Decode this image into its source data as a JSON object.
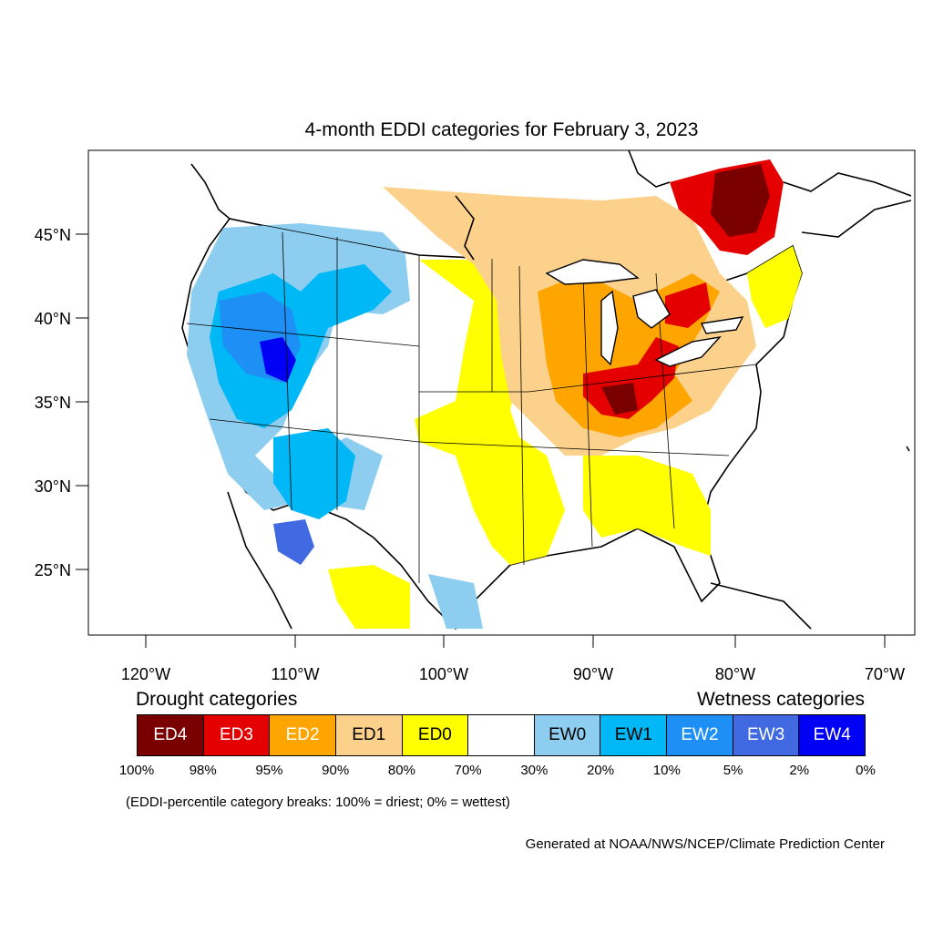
{
  "title": "4-month EDDI categories for February 3, 2023",
  "lat_labels": [
    "45°N",
    "40°N",
    "35°N",
    "30°N",
    "25°N"
  ],
  "lon_labels": [
    "120°W",
    "110°W",
    "100°W",
    "90°W",
    "80°W",
    "70°W"
  ],
  "legend": {
    "drought_heading": "Drought categories",
    "wetness_heading": "Wetness categories",
    "categories": [
      {
        "label": "ED4",
        "color": "#7a0000",
        "text_color": "#ffffff"
      },
      {
        "label": "ED3",
        "color": "#e50000",
        "text_color": "#ffffff"
      },
      {
        "label": "ED2",
        "color": "#ffa500",
        "text_color": "#ffffff"
      },
      {
        "label": "ED1",
        "color": "#fcd18c",
        "text_color": "#000000"
      },
      {
        "label": "ED0",
        "color": "#ffff00",
        "text_color": "#000000"
      },
      {
        "label": "",
        "color": "#ffffff",
        "text_color": "#000000"
      },
      {
        "label": "EW0",
        "color": "#8dcdf0",
        "text_color": "#000000"
      },
      {
        "label": "EW1",
        "color": "#00b8f5",
        "text_color": "#000000"
      },
      {
        "label": "EW2",
        "color": "#1e8ff5",
        "text_color": "#ffffff"
      },
      {
        "label": "EW3",
        "color": "#4169e1",
        "text_color": "#ffffff"
      },
      {
        "label": "EW4",
        "color": "#0000f5",
        "text_color": "#ffffff"
      }
    ],
    "breaks": [
      "100%",
      "98%",
      "95%",
      "90%",
      "80%",
      "70%",
      "30%",
      "20%",
      "10%",
      "5%",
      "2%",
      "0%"
    ]
  },
  "note": "(EDDI-percentile category breaks: 100% = driest; 0% = wettest)",
  "credit": "Generated at NOAA/NWS/NCEP/Climate Prediction Center"
}
